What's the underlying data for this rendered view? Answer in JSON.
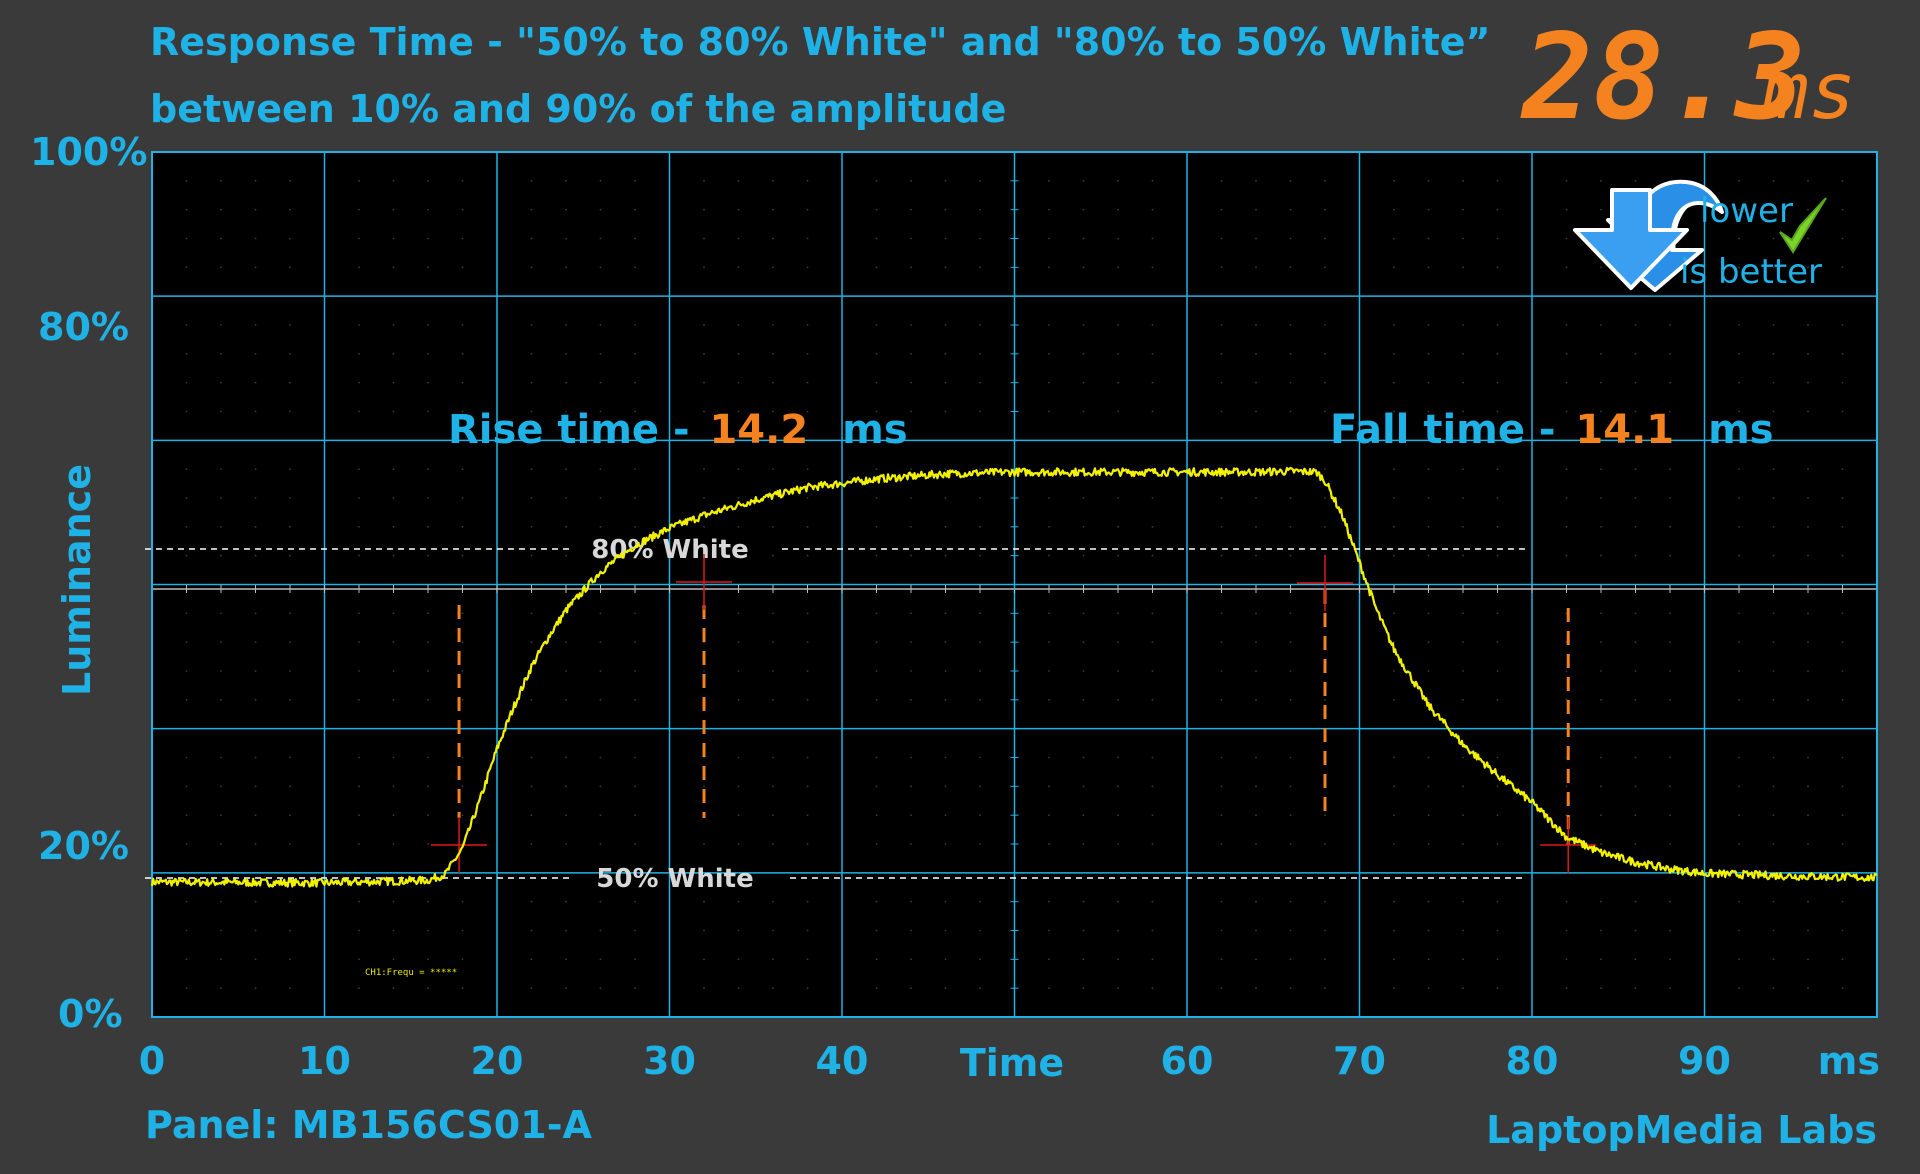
{
  "header": {
    "title_line1": "Response Time - \"50% to 80% White\" and \"80% to 50% White”",
    "title_line2": "between 10% and 90% of the amplitude",
    "total_value": "28.3",
    "total_unit": "ms"
  },
  "badge": {
    "line1": "lower",
    "line2": "is better"
  },
  "chart_data": {
    "type": "line",
    "xlabel": "Time",
    "ylabel": "Luminance",
    "x_unit": "ms",
    "xlim": [
      0,
      100
    ],
    "x_ticks": [
      "0",
      "10",
      "20",
      "30",
      "40",
      "60",
      "70",
      "80",
      "90"
    ],
    "y_ticks": [
      "0%",
      "20%",
      "80%",
      "100%"
    ],
    "grid": true,
    "series": [
      {
        "x": [
          0,
          10,
          16,
          17,
          18,
          19,
          20,
          21,
          22,
          23,
          24,
          26,
          28,
          30,
          32,
          35,
          38,
          42,
          46,
          50,
          55,
          60,
          64,
          66,
          67.5,
          68,
          69,
          70,
          71,
          72,
          74,
          76,
          78,
          80,
          82,
          84,
          86,
          88,
          90,
          95,
          100
        ],
        "y": [
          15.6,
          15.5,
          15.8,
          16.5,
          19.5,
          25,
          31,
          36,
          40.5,
          44,
          47,
          51.5,
          54.5,
          56.5,
          58,
          59.8,
          61.2,
          62.2,
          62.8,
          63,
          63,
          63,
          63,
          63.1,
          63,
          62,
          58,
          52.5,
          47,
          42.5,
          36,
          31.5,
          28,
          24.8,
          20.8,
          19,
          17.9,
          17.1,
          16.6,
          16.3,
          16.1
        ]
      }
    ],
    "reference_lines": [
      {
        "label": "80% White",
        "y": 63
      },
      {
        "label": "50% White",
        "y": 16
      }
    ],
    "rise": {
      "label": "Rise time - ",
      "value": "14.2",
      "unit": "ms",
      "start_x": 17.8,
      "end_x": 32
    },
    "fall": {
      "label": "Fall time - ",
      "value": "14.1",
      "unit": "ms",
      "start_x": 68,
      "end_x": 82.1
    },
    "panel_note": "CH1:Frequ = *****"
  },
  "footer": {
    "panel": "Panel: MB156CS01-A",
    "brand": "LaptopMedia Labs"
  },
  "colors": {
    "background": "#3a3a3a",
    "plot": "#000000",
    "grid": "#1fb2e6",
    "text": "#1fb2e6",
    "accent": "#f4821f",
    "trace": "#f2f200",
    "reference": "#ffffff",
    "marker": "#e01818"
  }
}
